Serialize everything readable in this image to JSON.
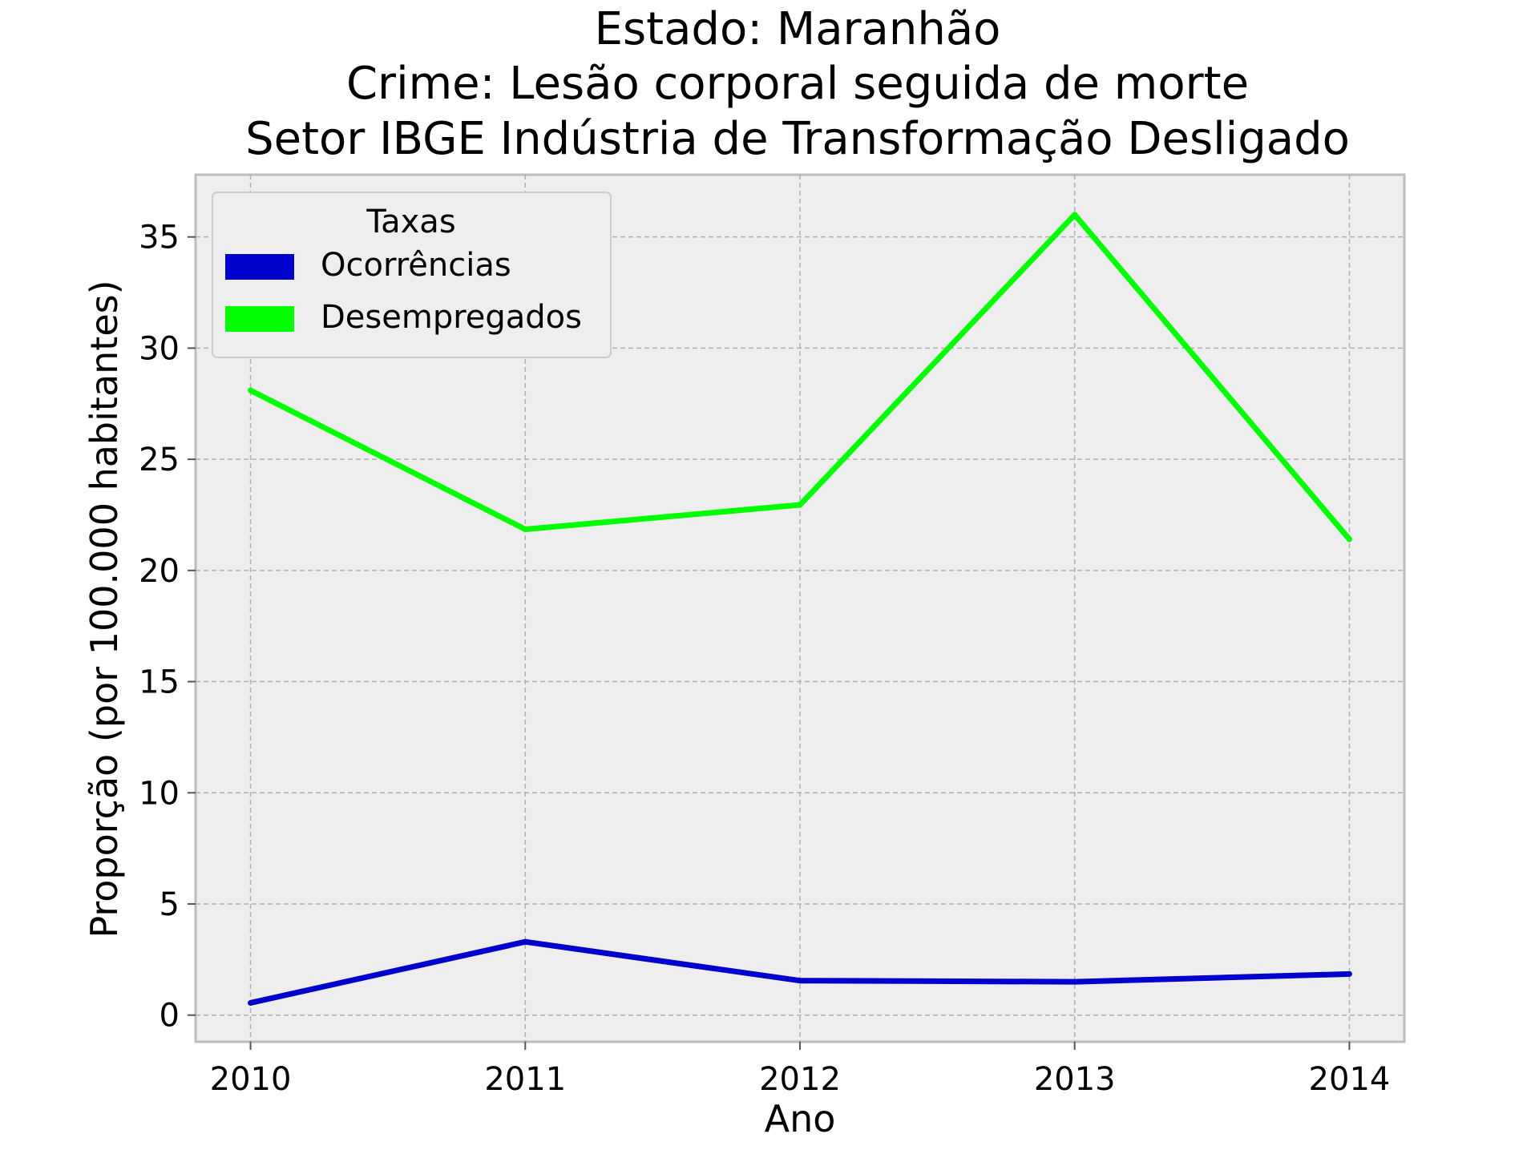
{
  "chart_data": {
    "type": "line",
    "title_lines": [
      "Estado: Maranhão",
      "Crime: Lesão corporal seguida de morte",
      "Setor IBGE  Indústria de Transformação   Desligado"
    ],
    "xlabel": "Ano",
    "ylabel": "Proporção (por 100.000 habitantes)",
    "x": [
      2010,
      2011,
      2012,
      2013,
      2014
    ],
    "x_ticks": [
      "2010",
      "2011",
      "2012",
      "2013",
      "2014"
    ],
    "xlim": [
      2009.8,
      2014.2
    ],
    "ylim": [
      -1.2,
      37.8
    ],
    "y_ticks": [
      0,
      5,
      10,
      15,
      20,
      25,
      30,
      35
    ],
    "grid": true,
    "legend": {
      "title": "Taxas",
      "placement": "upper-left"
    },
    "series": [
      {
        "name": "Ocorrências",
        "color": "#0000cc",
        "values": [
          0.55,
          3.3,
          1.55,
          1.5,
          1.85
        ]
      },
      {
        "name": "Desempregados",
        "color": "#00ff00",
        "values": [
          28.1,
          21.85,
          22.95,
          36.0,
          21.4
        ]
      }
    ]
  }
}
